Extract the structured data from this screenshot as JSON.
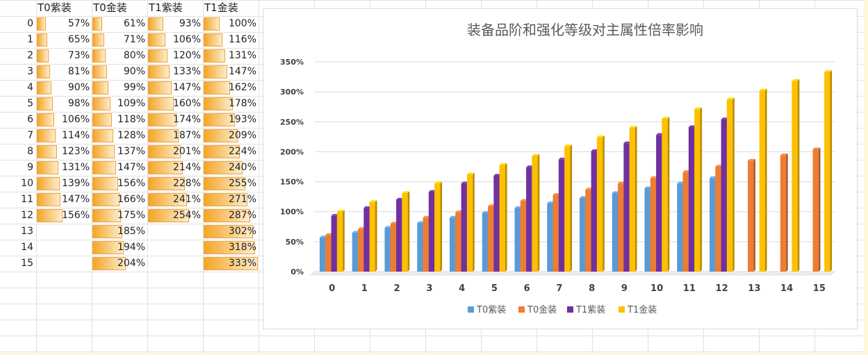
{
  "table": {
    "headers": [
      "T0紫装",
      "T0金装",
      "T1紫装",
      "T1金装"
    ],
    "row_labels": [
      "0",
      "1",
      "2",
      "3",
      "4",
      "5",
      "6",
      "7",
      "8",
      "9",
      "10",
      "11",
      "12",
      "13",
      "14",
      "15"
    ],
    "columns": [
      [
        "57%",
        "65%",
        "73%",
        "81%",
        "90%",
        "98%",
        "106%",
        "114%",
        "123%",
        "131%",
        "139%",
        "147%",
        "156%",
        "",
        "",
        ""
      ],
      [
        "61%",
        "71%",
        "80%",
        "90%",
        "99%",
        "109%",
        "118%",
        "128%",
        "137%",
        "147%",
        "156%",
        "166%",
        "175%",
        "185%",
        "194%",
        "204%"
      ],
      [
        "93%",
        "106%",
        "120%",
        "133%",
        "147%",
        "160%",
        "174%",
        "187%",
        "201%",
        "214%",
        "228%",
        "241%",
        "254%",
        "",
        "",
        ""
      ],
      [
        "100%",
        "116%",
        "131%",
        "147%",
        "162%",
        "178%",
        "193%",
        "209%",
        "224%",
        "240%",
        "255%",
        "271%",
        "287%",
        "302%",
        "318%",
        "333%"
      ]
    ]
  },
  "chart_data": {
    "type": "bar",
    "title": "装备品阶和强化等级对主属性倍率影响",
    "xlabel": "",
    "ylabel": "",
    "categories": [
      "0",
      "1",
      "2",
      "3",
      "4",
      "5",
      "6",
      "7",
      "8",
      "9",
      "10",
      "11",
      "12",
      "13",
      "14",
      "15"
    ],
    "ylim": [
      0,
      3.5
    ],
    "yticks": [
      0,
      0.5,
      1.0,
      1.5,
      2.0,
      2.5,
      3.0,
      3.5
    ],
    "ytick_labels": [
      "0%",
      "50%",
      "100%",
      "150%",
      "200%",
      "250%",
      "300%",
      "350%"
    ],
    "grid": true,
    "legend_position": "bottom",
    "series": [
      {
        "name": "T0紫装",
        "color": "#5b9bd5",
        "values": [
          0.57,
          0.65,
          0.73,
          0.81,
          0.9,
          0.98,
          1.06,
          1.14,
          1.23,
          1.31,
          1.39,
          1.47,
          1.56,
          null,
          null,
          null
        ]
      },
      {
        "name": "T0金装",
        "color": "#ed7d31",
        "values": [
          0.61,
          0.71,
          0.8,
          0.9,
          0.99,
          1.09,
          1.18,
          1.28,
          1.37,
          1.47,
          1.56,
          1.66,
          1.75,
          1.85,
          1.94,
          2.04
        ]
      },
      {
        "name": "T1紫装",
        "color": "#7030a0",
        "values": [
          0.93,
          1.06,
          1.2,
          1.33,
          1.47,
          1.6,
          1.74,
          1.87,
          2.01,
          2.14,
          2.28,
          2.41,
          2.54,
          null,
          null,
          null
        ]
      },
      {
        "name": "T1金装",
        "color": "#ffc000",
        "values": [
          1.0,
          1.16,
          1.31,
          1.47,
          1.62,
          1.78,
          1.93,
          2.09,
          2.24,
          2.4,
          2.55,
          2.71,
          2.87,
          3.02,
          3.18,
          3.33
        ]
      }
    ]
  }
}
